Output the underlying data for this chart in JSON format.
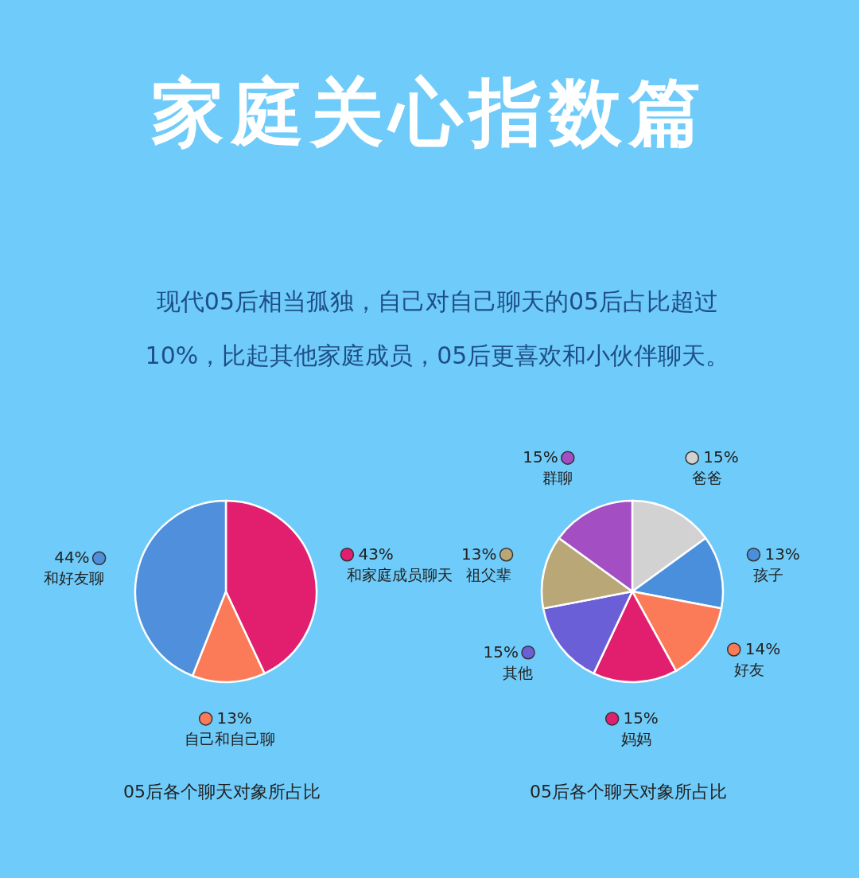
{
  "chart_data": [
    {
      "type": "other",
      "title": "家庭关心指数篇",
      "subtitle": "现代05后相当孤独，自己对自己聊天的05后占比超过10%，比起其他家庭成员，05后更喜欢和小伙伴聊天。"
    },
    {
      "type": "pie",
      "categories": [
        "和家庭成员聊天",
        "自己和自己聊",
        "和好友聊"
      ],
      "values": [
        43,
        13,
        44
      ],
      "colors": [
        "#e21f6e",
        "#fb7b58",
        "#4f8fdc"
      ],
      "value_labels": [
        "43%",
        "13%",
        "44%"
      ],
      "legend": "right",
      "annotations": [
        "05后各个聊天对象所占比"
      ]
    },
    {
      "type": "pie",
      "categories": [
        "爸爸",
        "孩子",
        "好友",
        "妈妈",
        "其他",
        "祖父辈",
        "群聊"
      ],
      "values": [
        15,
        13,
        14,
        15,
        15,
        13,
        15
      ],
      "colors": [
        "#d2d2d2",
        "#4a8fdc",
        "#fb7b58",
        "#e21f6e",
        "#6a5fd6",
        "#b9a778",
        "#a44ec4"
      ],
      "value_labels": [
        "15%",
        "13%",
        "14%",
        "15%",
        "15%",
        "13%",
        "15%"
      ],
      "legend": "right",
      "annotations": [
        "05后各个聊天对象所占比"
      ]
    }
  ]
}
